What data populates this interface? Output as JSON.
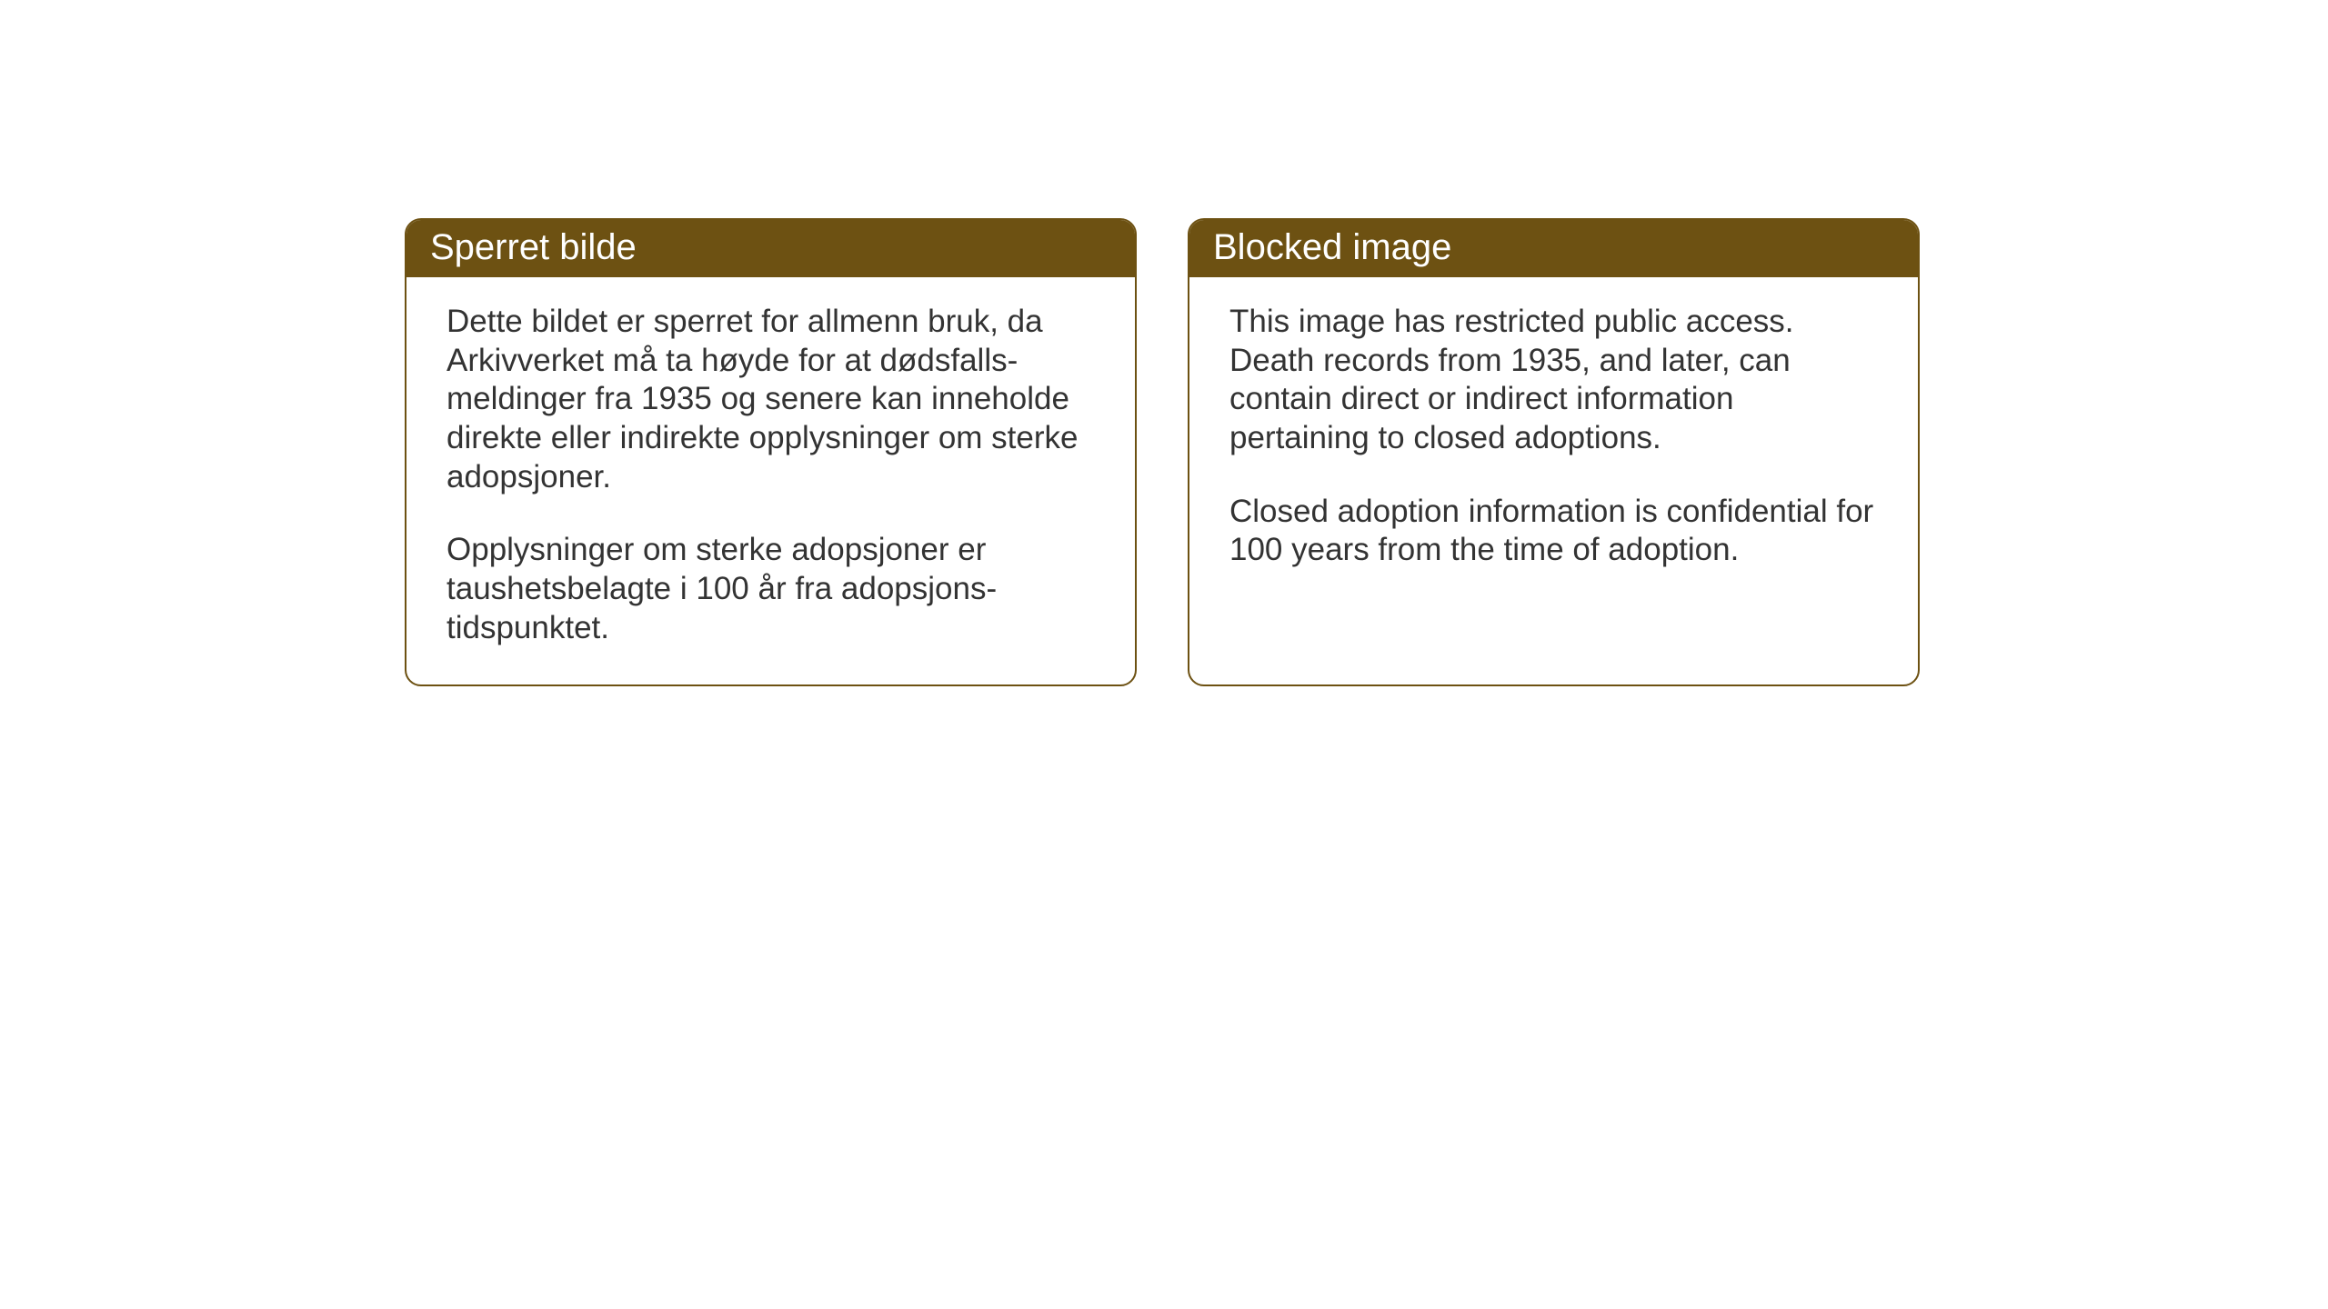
{
  "cards": {
    "left": {
      "title": "Sperret bilde",
      "paragraph1": "Dette bildet er sperret for allmenn bruk, da Arkivverket må ta høyde for at dødsfalls-meldinger fra 1935 og senere kan inneholde direkte eller indirekte opplysninger om sterke adopsjoner.",
      "paragraph2": "Opplysninger om sterke adopsjoner er taushetsbelagte i 100 år fra adopsjons-tidspunktet."
    },
    "right": {
      "title": "Blocked image",
      "paragraph1": "This image has restricted public access. Death records from 1935, and later, can contain direct or indirect information pertaining to closed adoptions.",
      "paragraph2": "Closed adoption information is confidential for 100 years from the time of adoption."
    }
  },
  "styling": {
    "card_border_color": "#6d5112",
    "card_header_bg": "#6d5112",
    "card_header_text_color": "#ffffff",
    "card_body_bg": "#ffffff",
    "card_body_text_color": "#333333",
    "page_bg": "#ffffff",
    "border_radius": 18,
    "header_fontsize": 40,
    "body_fontsize": 35
  }
}
